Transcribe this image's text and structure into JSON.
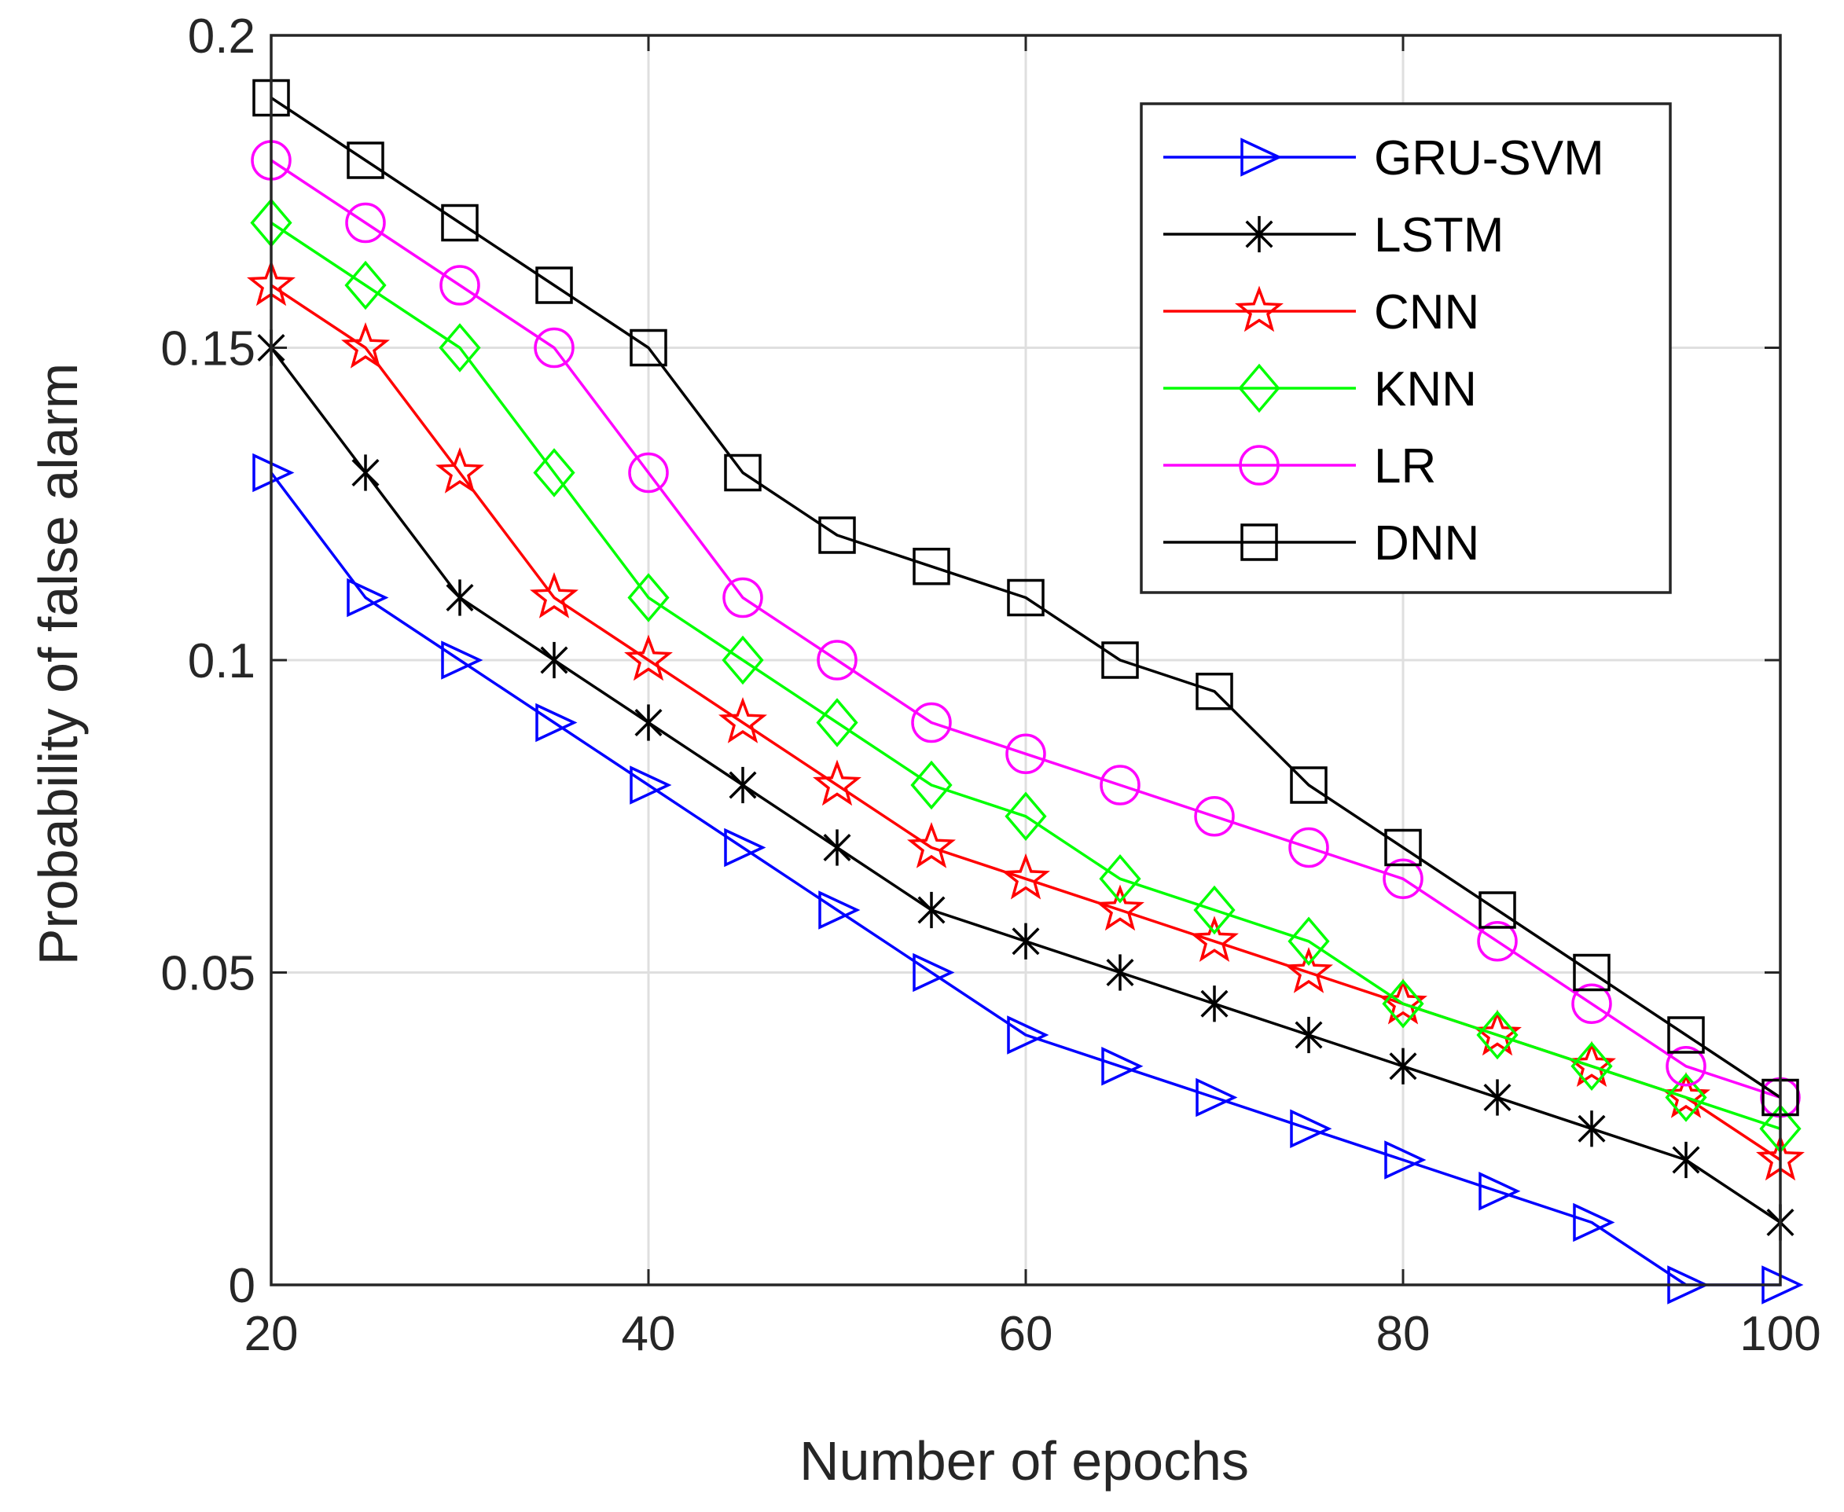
{
  "chart_data": {
    "type": "line",
    "title": "",
    "xlabel": "Number of epochs",
    "ylabel": "Probability of false alarm",
    "xlim": [
      20,
      100
    ],
    "ylim": [
      0,
      0.2
    ],
    "xticks": [
      20,
      40,
      60,
      80,
      100
    ],
    "xtick_labels": [
      "20",
      "40",
      "60",
      "80",
      "100"
    ],
    "yticks": [
      0,
      0.05,
      0.1,
      0.15,
      0.2
    ],
    "ytick_labels": [
      "0",
      "0.05",
      "0.1",
      "0.15",
      "0.2"
    ],
    "grid": true,
    "legend_position": "top-right",
    "x": [
      20,
      25,
      30,
      35,
      40,
      45,
      50,
      55,
      60,
      65,
      70,
      75,
      80,
      85,
      90,
      95,
      100
    ],
    "series": [
      {
        "name": "GRU-SVM",
        "color": "#0000ff",
        "marker": "triangle-right",
        "values": [
          0.13,
          0.11,
          0.1,
          0.09,
          0.08,
          0.07,
          0.06,
          0.05,
          0.04,
          0.035,
          0.03,
          0.025,
          0.02,
          0.015,
          0.01,
          0.0,
          0.0
        ]
      },
      {
        "name": "LSTM",
        "color": "#000000",
        "marker": "asterisk",
        "values": [
          0.15,
          0.13,
          0.11,
          0.1,
          0.09,
          0.08,
          0.07,
          0.06,
          0.055,
          0.05,
          0.045,
          0.04,
          0.035,
          0.03,
          0.025,
          0.02,
          0.01
        ]
      },
      {
        "name": "CNN",
        "color": "#ff0000",
        "marker": "pentagram",
        "values": [
          0.16,
          0.15,
          0.13,
          0.11,
          0.1,
          0.09,
          0.08,
          0.07,
          0.065,
          0.06,
          0.055,
          0.05,
          0.045,
          0.04,
          0.035,
          0.03,
          0.02
        ]
      },
      {
        "name": "KNN",
        "color": "#00ff00",
        "marker": "diamond",
        "values": [
          0.17,
          0.16,
          0.15,
          0.13,
          0.11,
          0.1,
          0.09,
          0.08,
          0.075,
          0.065,
          0.06,
          0.055,
          0.045,
          0.04,
          0.035,
          0.03,
          0.025
        ]
      },
      {
        "name": "LR",
        "color": "#ff00ff",
        "marker": "circle",
        "values": [
          0.18,
          0.17,
          0.16,
          0.15,
          0.13,
          0.11,
          0.1,
          0.09,
          0.085,
          0.08,
          0.075,
          0.07,
          0.065,
          0.055,
          0.045,
          0.035,
          0.03
        ]
      },
      {
        "name": "DNN",
        "color": "#000000",
        "marker": "square",
        "values": [
          0.19,
          0.18,
          0.17,
          0.16,
          0.15,
          0.13,
          0.12,
          0.115,
          0.11,
          0.1,
          0.095,
          0.08,
          0.07,
          0.06,
          0.05,
          0.04,
          0.03
        ]
      }
    ]
  }
}
